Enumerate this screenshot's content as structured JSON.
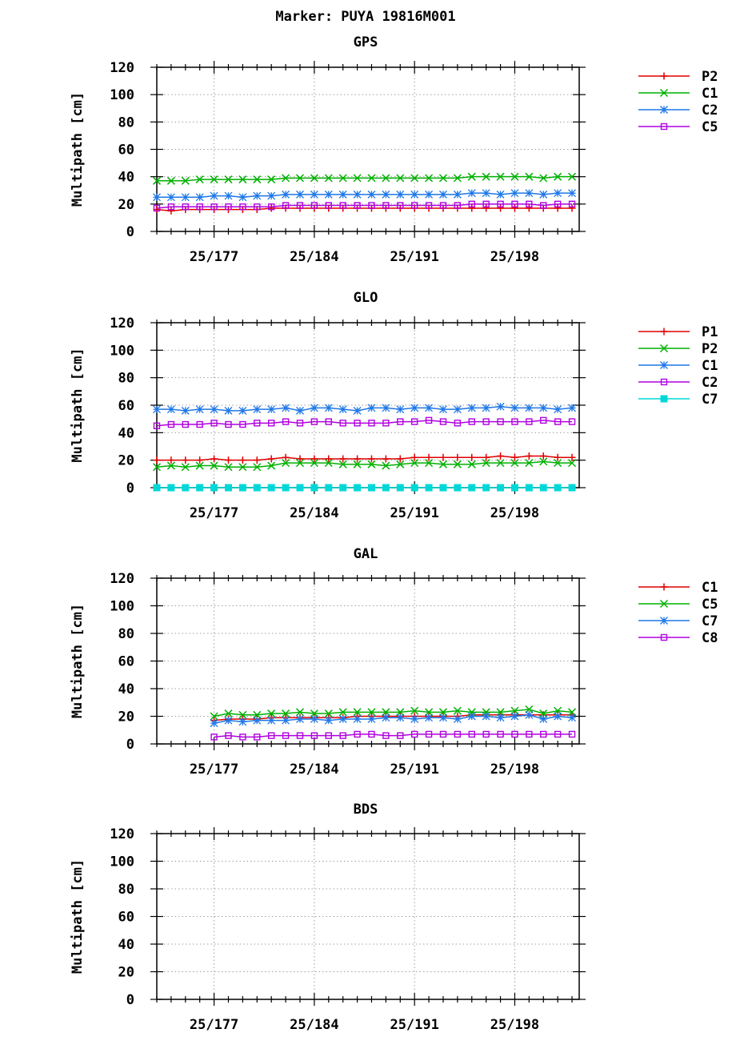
{
  "title": "Marker: PUYA 19816M001",
  "colors": {
    "P1": "#e00000",
    "P2_glo": "#00b000",
    "P2": "#e00000",
    "C1": "#00b000",
    "C2": "#1f78e8",
    "C5": "#b000e0",
    "C7": "#00d8d8",
    "C8": "#b000e0",
    "GAL_C1": "#e00000",
    "GAL_C5": "#00b000",
    "GAL_C7": "#1f78e8",
    "GLO_C1": "#1f78e8",
    "GLO_C2": "#b000e0"
  },
  "chart_data": [
    {
      "type": "line",
      "title": "GPS",
      "ylabel": "Multipath [cm]",
      "xlabel": "",
      "ylim": [
        0,
        120
      ],
      "xlim": [
        173,
        202.5
      ],
      "yticks": [
        0,
        20,
        40,
        60,
        80,
        100,
        120
      ],
      "xticks": [
        {
          "value": 177,
          "label": "25/177"
        },
        {
          "value": 184,
          "label": "25/184"
        },
        {
          "value": 191,
          "label": "25/191"
        },
        {
          "value": 198,
          "label": "25/198"
        }
      ],
      "x": [
        173,
        174,
        175,
        176,
        177,
        178,
        179,
        180,
        181,
        182,
        183,
        184,
        185,
        186,
        187,
        188,
        189,
        190,
        191,
        192,
        193,
        194,
        195,
        196,
        197,
        198,
        199,
        200,
        201,
        202
      ],
      "grid": true,
      "legend": "right",
      "series": [
        {
          "name": "P2",
          "marker": "plus",
          "color": "#e00000",
          "values": [
            16,
            15,
            16,
            16,
            16,
            16,
            16,
            16,
            17,
            17,
            17,
            17,
            17,
            17,
            17,
            17,
            17,
            17,
            17,
            17,
            17,
            17,
            17,
            17,
            17,
            17,
            17,
            17,
            17,
            17
          ]
        },
        {
          "name": "C1",
          "marker": "x",
          "color": "#00b000",
          "values": [
            37,
            37,
            37,
            38,
            38,
            38,
            38,
            38,
            38,
            39,
            39,
            39,
            39,
            39,
            39,
            39,
            39,
            39,
            39,
            39,
            39,
            39,
            40,
            40,
            40,
            40,
            40,
            39,
            40,
            40
          ]
        },
        {
          "name": "C2",
          "marker": "star",
          "color": "#1f78e8",
          "values": [
            25,
            25,
            25,
            25,
            26,
            26,
            25,
            26,
            26,
            27,
            27,
            27,
            27,
            27,
            27,
            27,
            27,
            27,
            27,
            27,
            27,
            27,
            28,
            28,
            27,
            28,
            28,
            27,
            28,
            28
          ]
        },
        {
          "name": "C5",
          "marker": "square",
          "color": "#b000e0",
          "values": [
            17,
            18,
            18,
            18,
            18,
            18,
            18,
            18,
            18,
            19,
            19,
            19,
            19,
            19,
            19,
            19,
            19,
            19,
            19,
            19,
            19,
            19,
            20,
            20,
            20,
            20,
            20,
            19,
            20,
            20
          ]
        }
      ]
    },
    {
      "type": "line",
      "title": "GLO",
      "ylabel": "Multipath [cm]",
      "xlabel": "",
      "ylim": [
        0,
        120
      ],
      "xlim": [
        173,
        202.5
      ],
      "yticks": [
        0,
        20,
        40,
        60,
        80,
        100,
        120
      ],
      "xticks": [
        {
          "value": 177,
          "label": "25/177"
        },
        {
          "value": 184,
          "label": "25/184"
        },
        {
          "value": 191,
          "label": "25/191"
        },
        {
          "value": 198,
          "label": "25/198"
        }
      ],
      "x": [
        173,
        174,
        175,
        176,
        177,
        178,
        179,
        180,
        181,
        182,
        183,
        184,
        185,
        186,
        187,
        188,
        189,
        190,
        191,
        192,
        193,
        194,
        195,
        196,
        197,
        198,
        199,
        200,
        201,
        202
      ],
      "grid": true,
      "legend": "right",
      "series": [
        {
          "name": "P1",
          "marker": "plus",
          "color": "#e00000",
          "values": [
            20,
            20,
            20,
            20,
            21,
            20,
            20,
            20,
            21,
            22,
            21,
            21,
            21,
            21,
            21,
            21,
            21,
            21,
            22,
            22,
            22,
            22,
            22,
            22,
            23,
            22,
            23,
            23,
            22,
            22
          ]
        },
        {
          "name": "P2",
          "marker": "x",
          "color": "#00b000",
          "values": [
            15,
            16,
            15,
            16,
            16,
            15,
            15,
            15,
            16,
            18,
            18,
            18,
            18,
            17,
            17,
            17,
            16,
            17,
            18,
            18,
            17,
            17,
            17,
            18,
            18,
            18,
            18,
            19,
            18,
            18
          ]
        },
        {
          "name": "C1",
          "marker": "star",
          "color": "#1f78e8",
          "values": [
            57,
            57,
            56,
            57,
            57,
            56,
            56,
            57,
            57,
            58,
            56,
            58,
            58,
            57,
            56,
            58,
            58,
            57,
            58,
            58,
            57,
            57,
            58,
            58,
            59,
            58,
            58,
            58,
            57,
            58
          ]
        },
        {
          "name": "C2",
          "marker": "square",
          "color": "#b000e0",
          "values": [
            45,
            46,
            46,
            46,
            47,
            46,
            46,
            47,
            47,
            48,
            47,
            48,
            48,
            47,
            47,
            47,
            47,
            48,
            48,
            49,
            48,
            47,
            48,
            48,
            48,
            48,
            48,
            49,
            48,
            48
          ]
        },
        {
          "name": "C7",
          "marker": "filled-square",
          "color": "#00d8d8",
          "values": [
            0,
            0,
            0,
            0,
            0,
            0,
            0,
            0,
            0,
            0,
            0,
            0,
            0,
            0,
            0,
            0,
            0,
            0,
            0,
            0,
            0,
            0,
            0,
            0,
            0,
            0,
            0,
            0,
            0,
            0
          ]
        }
      ]
    },
    {
      "type": "line",
      "title": "GAL",
      "ylabel": "Multipath [cm]",
      "xlabel": "",
      "ylim": [
        0,
        120
      ],
      "xlim": [
        173,
        202.5
      ],
      "yticks": [
        0,
        20,
        40,
        60,
        80,
        100,
        120
      ],
      "xticks": [
        {
          "value": 177,
          "label": "25/177"
        },
        {
          "value": 184,
          "label": "25/184"
        },
        {
          "value": 191,
          "label": "25/191"
        },
        {
          "value": 198,
          "label": "25/198"
        }
      ],
      "x": [
        177,
        178,
        179,
        180,
        181,
        182,
        183,
        184,
        185,
        186,
        187,
        188,
        189,
        190,
        191,
        192,
        193,
        194,
        195,
        196,
        197,
        198,
        199,
        200,
        201,
        202
      ],
      "grid": true,
      "legend": "right",
      "series": [
        {
          "name": "C1",
          "marker": "plus",
          "color": "#e00000",
          "values": [
            17,
            18,
            18,
            18,
            19,
            19,
            19,
            19,
            19,
            19,
            20,
            20,
            20,
            20,
            20,
            20,
            20,
            20,
            21,
            21,
            21,
            21,
            21,
            21,
            21,
            21
          ]
        },
        {
          "name": "C5",
          "marker": "x",
          "color": "#00b000",
          "values": [
            20,
            22,
            21,
            21,
            22,
            22,
            23,
            22,
            22,
            23,
            23,
            23,
            23,
            23,
            24,
            23,
            23,
            24,
            23,
            23,
            23,
            24,
            25,
            22,
            24,
            23
          ]
        },
        {
          "name": "C7",
          "marker": "star",
          "color": "#1f78e8",
          "values": [
            15,
            17,
            16,
            17,
            17,
            17,
            18,
            18,
            17,
            18,
            18,
            18,
            19,
            19,
            18,
            19,
            19,
            18,
            20,
            20,
            19,
            20,
            21,
            18,
            20,
            19
          ]
        },
        {
          "name": "C8",
          "marker": "square",
          "color": "#b000e0",
          "values": [
            5,
            6,
            5,
            5,
            6,
            6,
            6,
            6,
            6,
            6,
            7,
            7,
            6,
            6,
            7,
            7,
            7,
            7,
            7,
            7,
            7,
            7,
            7,
            7,
            7,
            7
          ]
        }
      ]
    },
    {
      "type": "line",
      "title": "BDS",
      "ylabel": "Multipath [cm]",
      "xlabel": "",
      "ylim": [
        0,
        120
      ],
      "xlim": [
        173,
        202.5
      ],
      "yticks": [
        0,
        20,
        40,
        60,
        80,
        100,
        120
      ],
      "xticks": [
        {
          "value": 177,
          "label": "25/177"
        },
        {
          "value": 184,
          "label": "25/184"
        },
        {
          "value": 191,
          "label": "25/191"
        },
        {
          "value": 198,
          "label": "25/198"
        }
      ],
      "x": [],
      "grid": true,
      "legend": "none",
      "series": []
    }
  ]
}
